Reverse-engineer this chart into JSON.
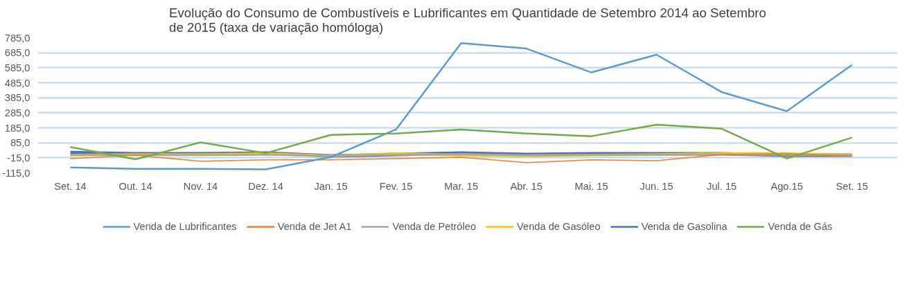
{
  "chart_data": {
    "type": "line",
    "title": "Evolução do Consumo de Combustíveis e Lubrificantes em Quantidade de Setembro 2014 ao Setembro de 2015 (taxa de variação homóloga)",
    "categories": [
      "Set. 14",
      "Out. 14",
      "Nov. 14",
      "Dez. 14",
      "Jan. 15",
      "Fev. 15",
      "Mar. 15",
      "Abr. 15",
      "Mai. 15",
      "Jun. 15",
      "Jul. 15",
      "Ago.15",
      "Set. 15"
    ],
    "series": [
      {
        "name": "Venda de Lubrificantes",
        "color": "#5b9bd5",
        "values": [
          -79,
          -88,
          -88,
          -92,
          -10,
          174,
          749,
          713,
          554,
          672,
          423,
          296,
          604
        ]
      },
      {
        "name": "Venda de Jet A1",
        "color": "#ed7d31",
        "values": [
          -20,
          3,
          -38,
          -29,
          -29,
          -20,
          -11,
          -47,
          -29,
          -34,
          7,
          12,
          -2
        ]
      },
      {
        "name": "Venda de Petróleo",
        "color": "#a5a5a5",
        "values": [
          5,
          3,
          3,
          5,
          0,
          5,
          10,
          3,
          5,
          5,
          7,
          3,
          3
        ]
      },
      {
        "name": "Venda de Gasóleo",
        "color": "#ffc000",
        "values": [
          3,
          7,
          7,
          12,
          -2,
          12,
          3,
          -2,
          3,
          7,
          12,
          12,
          3
        ]
      },
      {
        "name": "Venda de Gasolina",
        "color": "#4472c4",
        "values": [
          20,
          12,
          12,
          16,
          -2,
          7,
          16,
          7,
          12,
          12,
          12,
          3,
          3
        ]
      },
      {
        "name": "Venda de Gás",
        "color": "#70ad47",
        "values": [
          57,
          -25,
          88,
          16,
          138,
          147,
          174,
          147,
          129,
          206,
          179,
          -20,
          120
        ]
      }
    ],
    "ylim": [
      -115,
      785
    ],
    "yticks": [
      {
        "value": -115,
        "label": "-115,0"
      },
      {
        "value": -15,
        "label": "-15,0"
      },
      {
        "value": 85,
        "label": "85,0"
      },
      {
        "value": 185,
        "label": "185,0"
      },
      {
        "value": 285,
        "label": "285,0"
      },
      {
        "value": 385,
        "label": "385,0"
      },
      {
        "value": 485,
        "label": "485,0"
      },
      {
        "value": 585,
        "label": "585,0"
      },
      {
        "value": 685,
        "label": "685,0"
      },
      {
        "value": 785,
        "label": "785,0"
      }
    ],
    "grid": "y",
    "legend": "bottom",
    "line_style": "solid",
    "marker": "none"
  }
}
